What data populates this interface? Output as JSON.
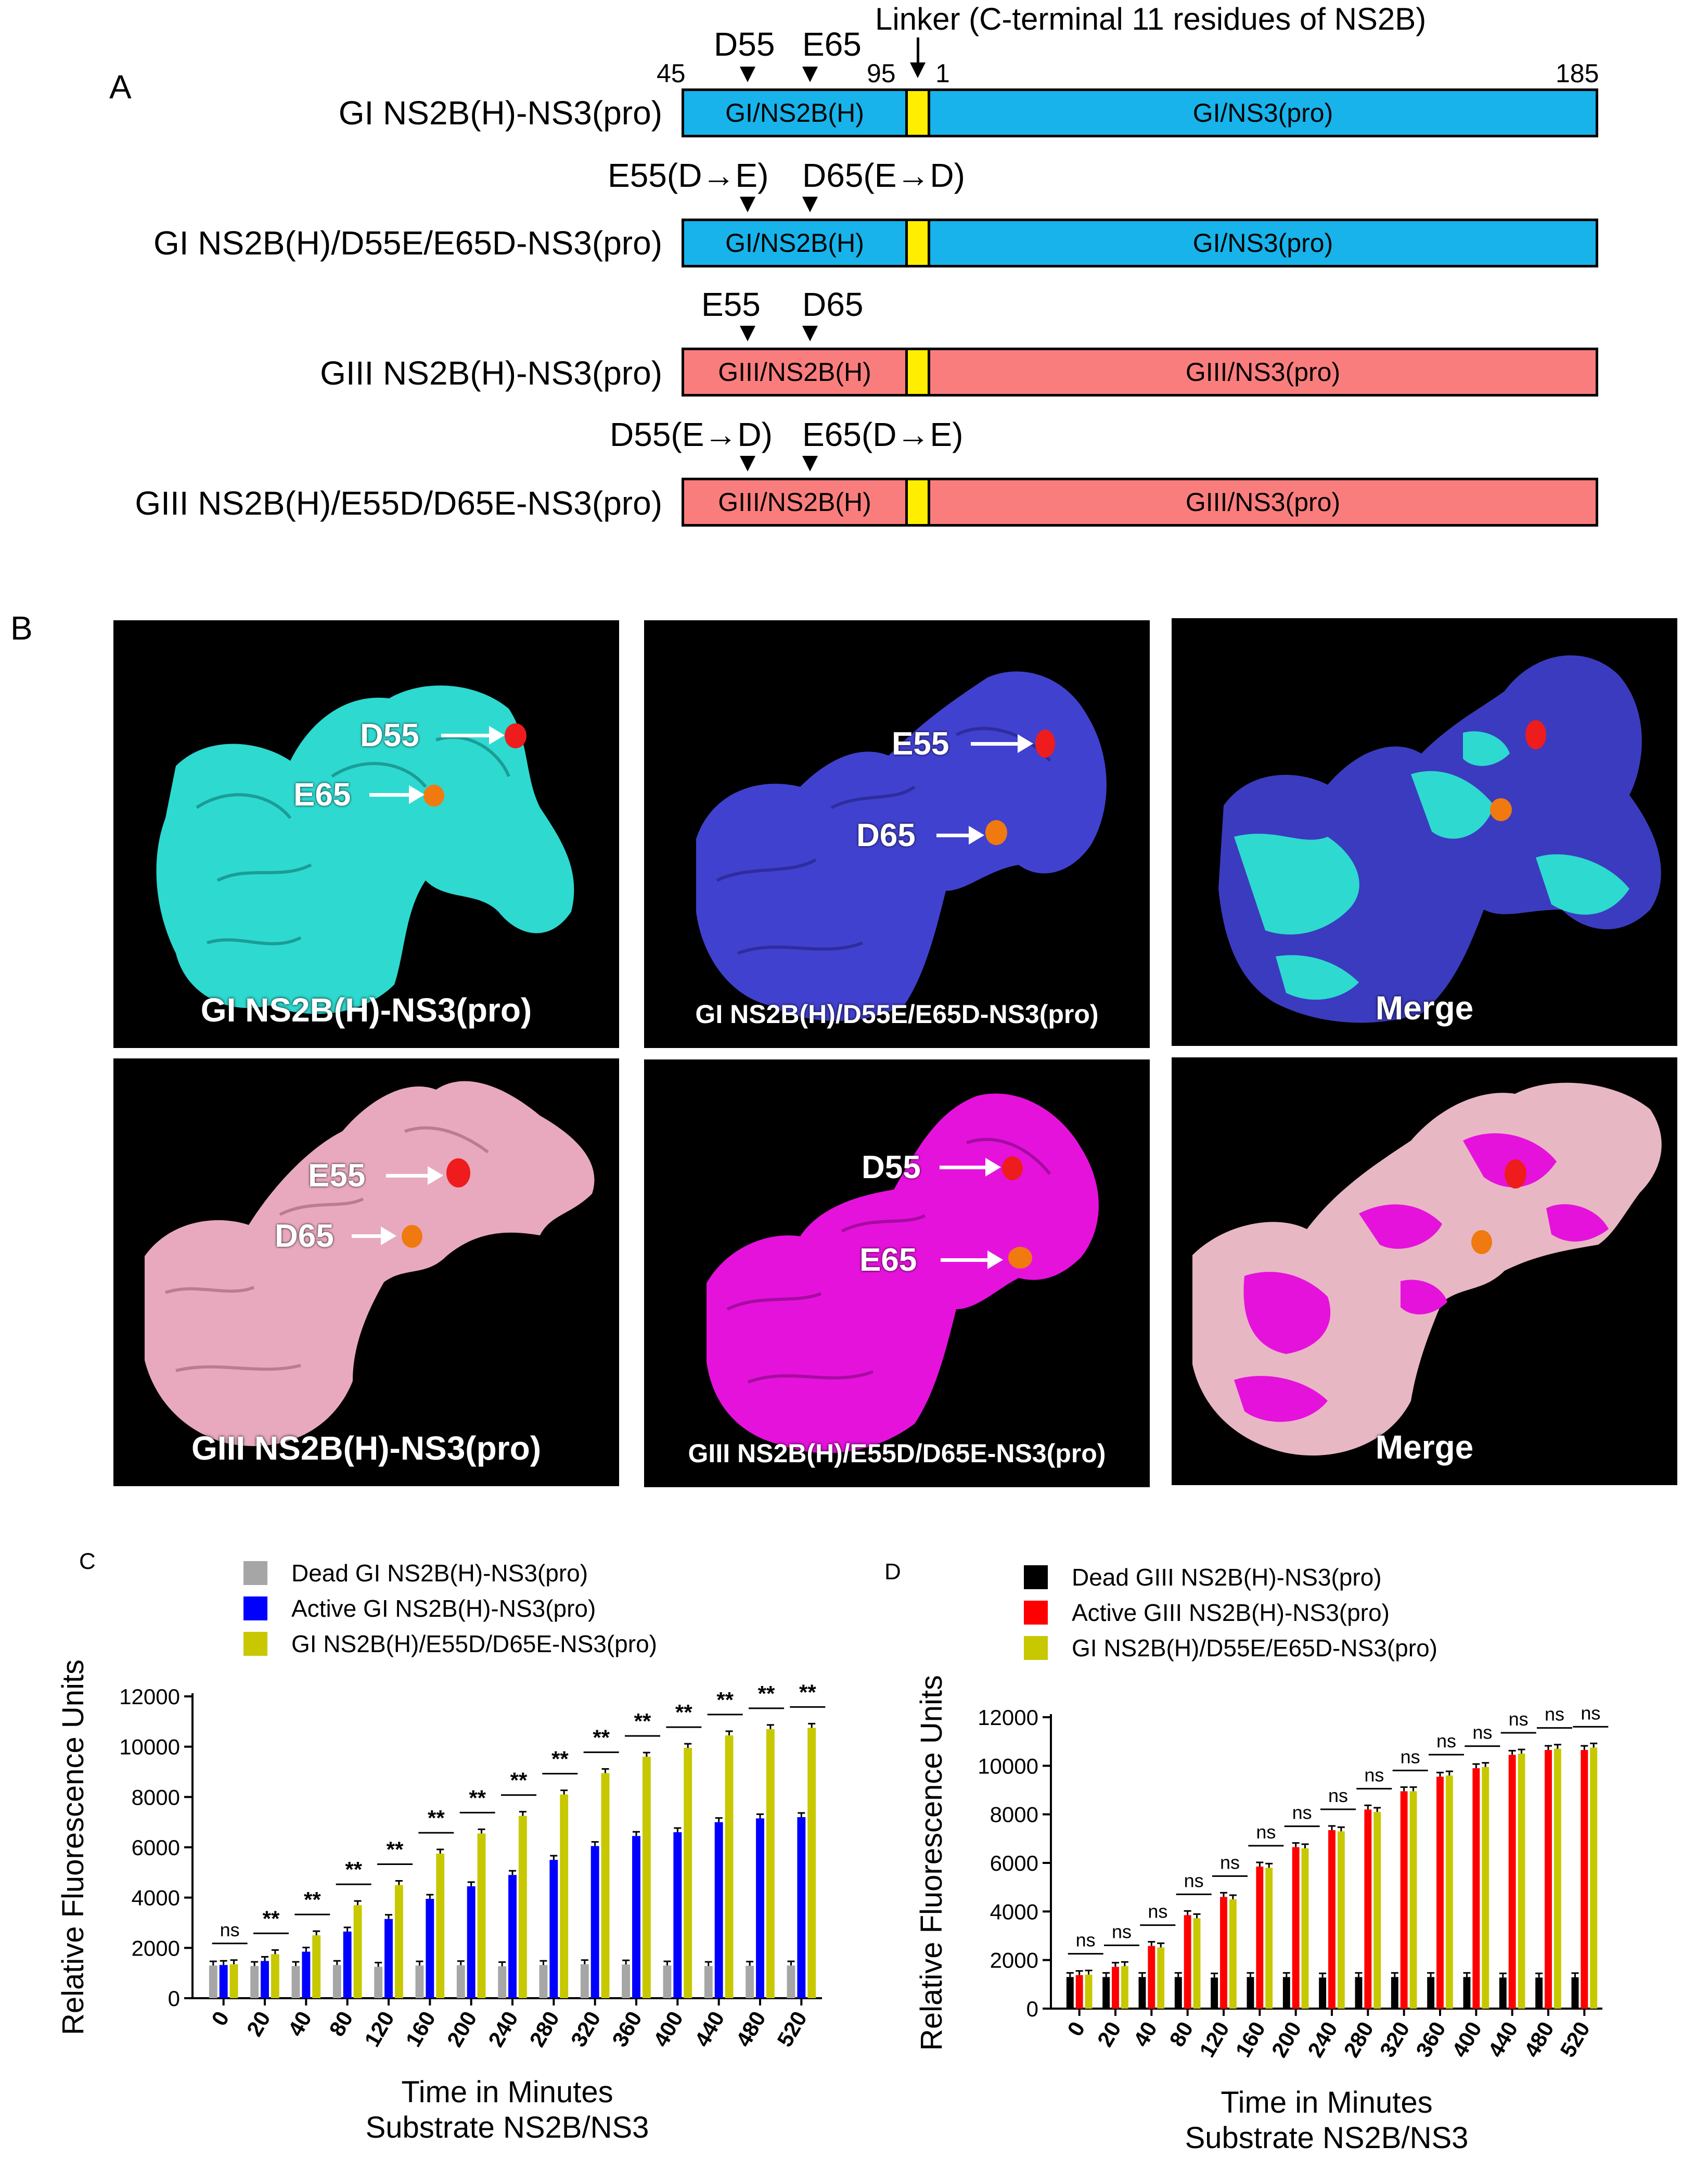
{
  "panelA": {
    "letter": "A",
    "linker_label": "Linker (C-terminal 11 residues of NS2B)",
    "positions": {
      "p45": "45",
      "p95": "95",
      "p1": "1",
      "p185": "185"
    },
    "rows": [
      {
        "name": "GI NS2B(H)-NS3(pro)",
        "seg1": "GI/NS2B(H)",
        "seg2": "GI/NS3(pro)",
        "color": "#17b3ea",
        "mut1": "D55",
        "mut2": "E65"
      },
      {
        "name": "GI NS2B(H)/D55E/E65D-NS3(pro)",
        "seg1": "GI/NS2B(H)",
        "seg2": "GI/NS3(pro)",
        "color": "#17b3ea",
        "mut1": "E55(D→E)",
        "mut2": "D65(E→D)"
      },
      {
        "name": "GIII NS2B(H)-NS3(pro)",
        "seg1": "GIII/NS2B(H)",
        "seg2": "GIII/NS3(pro)",
        "color": "#fa7d7d",
        "mut1": "E55",
        "mut2": "D65"
      },
      {
        "name": "GIII NS2B(H)/E55D/D65E-NS3(pro)",
        "seg1": "GIII/NS2B(H)",
        "seg2": "GIII/NS3(pro)",
        "color": "#fa7d7d",
        "mut1": "D55(E→D)",
        "mut2": "E65(D→E)"
      }
    ],
    "linker_color": "#ffee00"
  },
  "panelB": {
    "letter": "B",
    "images": [
      {
        "caption": "GI NS2B(H)-NS3(pro)",
        "color": "#2ed9d0",
        "label1": "D55",
        "label2": "E65"
      },
      {
        "caption": "GI NS2B(H)/D55E/E65D-NS3(pro)",
        "color": "#4141cf",
        "label1": "E55",
        "label2": "D65"
      },
      {
        "caption": "Merge",
        "color": "#2ed9d0",
        "color2": "#3b3bbf"
      },
      {
        "caption": "GIII NS2B(H)-NS3(pro)",
        "color": "#e8a9be",
        "label1": "E55",
        "label2": "D65"
      },
      {
        "caption": "GIII NS2B(H)/E55D/D65E-NS3(pro)",
        "color": "#e512dc",
        "label1": "D55",
        "label2": "E65"
      },
      {
        "caption": "Merge",
        "color": "#e8b7c4",
        "color2": "#e512dc"
      }
    ],
    "red_site": "#ee1c1c",
    "orange_site": "#f07a10"
  },
  "chart_data": [
    {
      "panel": "C",
      "type": "bar",
      "ylabel": "Relative Fluorescence Units",
      "xlabel": "Time in Minutes",
      "xlabel2": "Substrate NS2B/NS3",
      "ylim": [
        0,
        12000
      ],
      "yticks": [
        0,
        2000,
        4000,
        6000,
        8000,
        10000,
        12000
      ],
      "categories": [
        "0",
        "20",
        "40",
        "80",
        "120",
        "160",
        "200",
        "240",
        "280",
        "320",
        "360",
        "400",
        "440",
        "480",
        "520"
      ],
      "series": [
        {
          "name": "Dead GI NS2B(H)-NS3(pro)",
          "color": "#a6a6a6",
          "values": [
            1300,
            1280,
            1280,
            1320,
            1250,
            1300,
            1310,
            1270,
            1320,
            1350,
            1340,
            1300,
            1280,
            1290,
            1300
          ]
        },
        {
          "name": "Active GI NS2B(H)-NS3(pro)",
          "color": "#0000ff",
          "values": [
            1320,
            1480,
            1850,
            2650,
            3150,
            3950,
            4450,
            4900,
            5500,
            6050,
            6450,
            6600,
            7000,
            7150,
            7200
          ]
        },
        {
          "name": "GI NS2B(H)/E55D/D65E-NS3(pro)",
          "color": "#c8c800",
          "values": [
            1350,
            1750,
            2500,
            3700,
            4500,
            5750,
            6550,
            7250,
            8100,
            8950,
            9600,
            9950,
            10450,
            10700,
            10750
          ]
        }
      ],
      "significance": [
        "ns",
        "**",
        "**",
        "**",
        "**",
        "**",
        "**",
        "**",
        "**",
        "**",
        "**",
        "**",
        "**",
        "**",
        "**"
      ]
    },
    {
      "panel": "D",
      "type": "bar",
      "ylabel": "Relative Fluorescence Units",
      "xlabel": "Time in Minutes",
      "xlabel2": "Substrate NS2B/NS3",
      "ylim": [
        0,
        12000
      ],
      "yticks": [
        0,
        2000,
        4000,
        6000,
        8000,
        10000,
        12000
      ],
      "categories": [
        "0",
        "20",
        "40",
        "80",
        "120",
        "160",
        "200",
        "240",
        "280",
        "320",
        "360",
        "400",
        "440",
        "480",
        "520"
      ],
      "series": [
        {
          "name": "Dead GIII NS2B(H)-NS3(pro)",
          "color": "#000000",
          "values": [
            1300,
            1300,
            1300,
            1300,
            1280,
            1300,
            1300,
            1280,
            1300,
            1300,
            1300,
            1300,
            1280,
            1280,
            1290
          ]
        },
        {
          "name": "Active GIII NS2B(H)-NS3(pro)",
          "color": "#ff0000",
          "values": [
            1380,
            1720,
            2580,
            3850,
            4600,
            5850,
            6650,
            7350,
            8200,
            8950,
            9550,
            9900,
            10450,
            10650,
            10650
          ]
        },
        {
          "name": "GI NS2B(H)/D55E/E65D-NS3(pro)",
          "color": "#c8c800",
          "values": [
            1400,
            1750,
            2520,
            3720,
            4500,
            5800,
            6600,
            7300,
            8100,
            8950,
            9600,
            9950,
            10500,
            10700,
            10750
          ]
        }
      ],
      "significance": [
        "ns",
        "ns",
        "ns",
        "ns",
        "ns",
        "ns",
        "ns",
        "ns",
        "ns",
        "ns",
        "ns",
        "ns",
        "ns",
        "ns",
        "ns"
      ]
    }
  ]
}
